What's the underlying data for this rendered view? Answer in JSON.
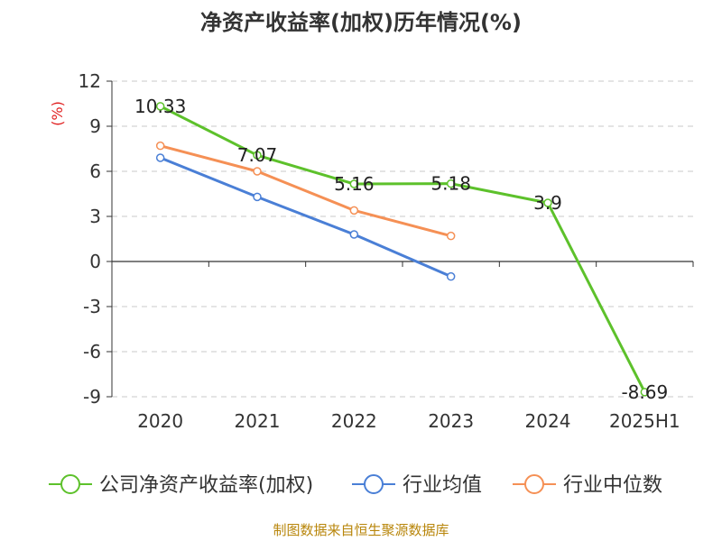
{
  "chart_data": {
    "type": "line",
    "title": "净资产收益率(加权)历年情况(%)",
    "ylabel": "(%)",
    "xlabel": "",
    "categories": [
      "2020",
      "2021",
      "2022",
      "2023",
      "2024",
      "2025H1"
    ],
    "ylim": [
      -9,
      12
    ],
    "yticks": [
      12,
      9,
      6,
      3,
      0,
      -3,
      -6,
      -9
    ],
    "grid": true,
    "legend_position": "bottom",
    "series": [
      {
        "name": "公司净资产收益率(加权)",
        "color": "#5dc12b",
        "values": [
          10.33,
          7.07,
          5.16,
          5.18,
          3.9,
          -8.69
        ],
        "labels": [
          "10.33",
          "7.07",
          "5.16",
          "5.18",
          "3.9",
          "-8.69"
        ]
      },
      {
        "name": "行业均值",
        "color": "#4a7fd6",
        "values": [
          6.9,
          4.3,
          1.8,
          -1.0,
          null,
          null
        ]
      },
      {
        "name": "行业中位数",
        "color": "#f59055",
        "values": [
          7.7,
          6.0,
          3.4,
          1.7,
          null,
          null
        ]
      }
    ]
  },
  "footer": {
    "source": "制图数据来自恒生聚源数据库"
  }
}
